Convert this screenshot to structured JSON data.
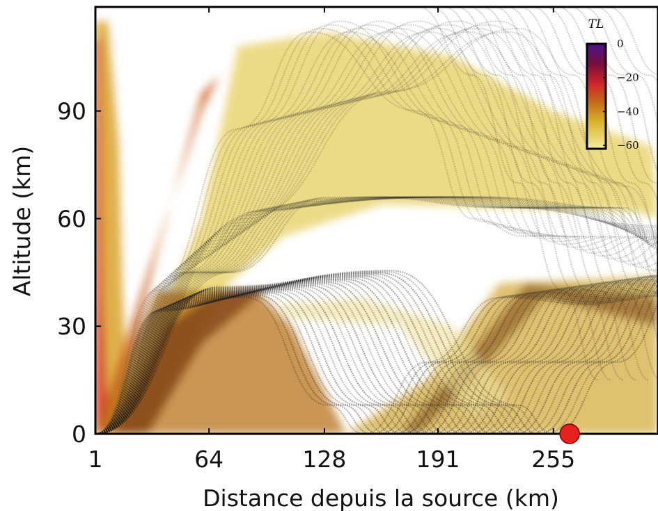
{
  "chart_data": {
    "type": "heatmap",
    "xlabel": "Distance depuis la source (km)",
    "ylabel": "Altitude (km)",
    "x_ticks": [
      "1",
      "64",
      "128",
      "191",
      "255"
    ],
    "x_tick_values": [
      1,
      64,
      128,
      191,
      255
    ],
    "y_ticks": [
      "0",
      "30",
      "60",
      "90"
    ],
    "y_tick_values": [
      0,
      30,
      60,
      90
    ],
    "xlim": [
      1,
      313
    ],
    "ylim": [
      0,
      119
    ],
    "colorbar": {
      "title": "TL",
      "ticks": [
        "0",
        "−20",
        "−40",
        "−60"
      ],
      "tick_values": [
        0,
        -20,
        -40,
        -60
      ],
      "range": [
        -62,
        0
      ],
      "colors": [
        "#ffffff",
        "#f4eca0",
        "#d9b52c",
        "#c26a17",
        "#d4242a",
        "#7a0e3c",
        "#4b128c"
      ]
    },
    "source_marker": {
      "distance_km": 264,
      "altitude_km": 0,
      "color": "#e8201e"
    },
    "ray_color": "#222222"
  }
}
